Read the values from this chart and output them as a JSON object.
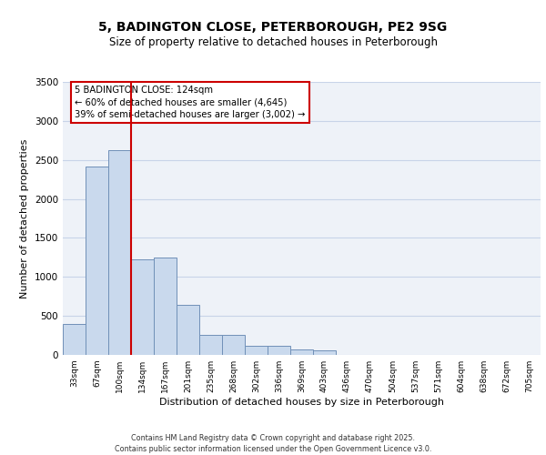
{
  "title_line1": "5, BADINGTON CLOSE, PETERBOROUGH, PE2 9SG",
  "title_line2": "Size of property relative to detached houses in Peterborough",
  "xlabel": "Distribution of detached houses by size in Peterborough",
  "ylabel": "Number of detached properties",
  "categories": [
    "33sqm",
    "67sqm",
    "100sqm",
    "134sqm",
    "167sqm",
    "201sqm",
    "235sqm",
    "268sqm",
    "302sqm",
    "336sqm",
    "369sqm",
    "403sqm",
    "436sqm",
    "470sqm",
    "504sqm",
    "537sqm",
    "571sqm",
    "604sqm",
    "638sqm",
    "672sqm",
    "705sqm"
  ],
  "values": [
    400,
    2420,
    2620,
    1230,
    1250,
    640,
    260,
    260,
    120,
    120,
    65,
    55,
    0,
    0,
    0,
    0,
    0,
    0,
    0,
    0,
    0
  ],
  "bar_color": "#c9d9ed",
  "bar_edge_color": "#7090b8",
  "vline_color": "#cc0000",
  "annotation_box_text": "5 BADINGTON CLOSE: 124sqm\n← 60% of detached houses are smaller (4,645)\n39% of semi-detached houses are larger (3,002) →",
  "ylim": [
    0,
    3500
  ],
  "yticks": [
    0,
    500,
    1000,
    1500,
    2000,
    2500,
    3000,
    3500
  ],
  "grid_color": "#c8d4e8",
  "background_color": "#eef2f8",
  "footer_line1": "Contains HM Land Registry data © Crown copyright and database right 2025.",
  "footer_line2": "Contains public sector information licensed under the Open Government Licence v3.0.",
  "title_fontsize": 10,
  "subtitle_fontsize": 8.5,
  "bar_width": 1.0
}
